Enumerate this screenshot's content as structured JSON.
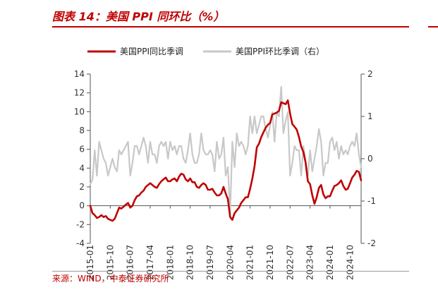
{
  "header": {
    "title": "图表 14：美国 PPI 同环比（%）"
  },
  "footer": {
    "source": "来源：WIND，中泰证券研究所"
  },
  "chart_data": {
    "type": "line",
    "title": "图表 14：美国 PPI 同环比（%）",
    "xlabel": "",
    "ylabel": "",
    "grid": false,
    "legend_position": "top",
    "x_tick_labels": [
      "2015-01",
      "2015-10",
      "2016-07",
      "2017-04",
      "2018-01",
      "2018-10",
      "2019-07",
      "2020-04",
      "2021-01",
      "2021-10",
      "2022-07",
      "2023-04",
      "2024-01",
      "2024-10"
    ],
    "y_left": {
      "range": [
        -4,
        14
      ],
      "ticks": [
        -4,
        -2,
        0,
        2,
        4,
        6,
        8,
        10,
        12,
        14
      ]
    },
    "y_right": {
      "range": [
        -2,
        2
      ],
      "ticks": [
        -2,
        -1,
        0,
        1,
        2
      ]
    },
    "x_range": [
      "2015-01",
      "2025-03"
    ],
    "series": [
      {
        "name": "美国PPI同比季调",
        "axis": "left",
        "color": "#c00000",
        "points": [
          [
            "2015-01",
            0.0
          ],
          [
            "2015-02",
            -0.8
          ],
          [
            "2015-03",
            -1.0
          ],
          [
            "2015-04",
            -1.3
          ],
          [
            "2015-05",
            -1.2
          ],
          [
            "2015-06",
            -1.0
          ],
          [
            "2015-07",
            -1.2
          ],
          [
            "2015-08",
            -1.1
          ],
          [
            "2015-09",
            -1.4
          ],
          [
            "2015-10",
            -1.5
          ],
          [
            "2015-11",
            -1.6
          ],
          [
            "2015-12",
            -1.4
          ],
          [
            "2016-01",
            -0.8
          ],
          [
            "2016-02",
            -0.2
          ],
          [
            "2016-03",
            -0.3
          ],
          [
            "2016-04",
            -0.1
          ],
          [
            "2016-05",
            0.1
          ],
          [
            "2016-06",
            0.3
          ],
          [
            "2016-07",
            -0.2
          ],
          [
            "2016-08",
            0.0
          ],
          [
            "2016-09",
            0.6
          ],
          [
            "2016-10",
            1.0
          ],
          [
            "2016-11",
            1.1
          ],
          [
            "2016-12",
            1.4
          ],
          [
            "2017-01",
            1.6
          ],
          [
            "2017-02",
            2.0
          ],
          [
            "2017-03",
            2.2
          ],
          [
            "2017-04",
            2.4
          ],
          [
            "2017-05",
            2.2
          ],
          [
            "2017-06",
            2.0
          ],
          [
            "2017-07",
            1.9
          ],
          [
            "2017-08",
            2.3
          ],
          [
            "2017-09",
            2.6
          ],
          [
            "2017-10",
            2.8
          ],
          [
            "2017-11",
            3.0
          ],
          [
            "2017-12",
            2.6
          ],
          [
            "2018-01",
            2.6
          ],
          [
            "2018-02",
            2.8
          ],
          [
            "2018-03",
            2.9
          ],
          [
            "2018-04",
            2.6
          ],
          [
            "2018-05",
            3.1
          ],
          [
            "2018-06",
            3.4
          ],
          [
            "2018-07",
            3.3
          ],
          [
            "2018-08",
            2.8
          ],
          [
            "2018-09",
            2.6
          ],
          [
            "2018-10",
            2.9
          ],
          [
            "2018-11",
            2.5
          ],
          [
            "2018-12",
            2.5
          ],
          [
            "2019-01",
            2.0
          ],
          [
            "2019-02",
            1.9
          ],
          [
            "2019-03",
            2.2
          ],
          [
            "2019-04",
            2.4
          ],
          [
            "2019-05",
            2.2
          ],
          [
            "2019-06",
            1.7
          ],
          [
            "2019-07",
            1.7
          ],
          [
            "2019-08",
            1.8
          ],
          [
            "2019-09",
            1.4
          ],
          [
            "2019-10",
            1.1
          ],
          [
            "2019-11",
            1.1
          ],
          [
            "2019-12",
            1.3
          ],
          [
            "2020-01",
            2.0
          ],
          [
            "2020-02",
            1.3
          ],
          [
            "2020-03",
            0.7
          ],
          [
            "2020-04",
            -1.2
          ],
          [
            "2020-05",
            -1.5
          ],
          [
            "2020-06",
            -0.8
          ],
          [
            "2020-07",
            -0.5
          ],
          [
            "2020-08",
            -0.2
          ],
          [
            "2020-09",
            0.3
          ],
          [
            "2020-10",
            0.6
          ],
          [
            "2020-11",
            0.9
          ],
          [
            "2020-12",
            0.9
          ],
          [
            "2021-01",
            1.8
          ],
          [
            "2021-02",
            2.9
          ],
          [
            "2021-03",
            4.2
          ],
          [
            "2021-04",
            6.2
          ],
          [
            "2021-05",
            6.6
          ],
          [
            "2021-06",
            7.3
          ],
          [
            "2021-07",
            7.8
          ],
          [
            "2021-08",
            8.3
          ],
          [
            "2021-09",
            8.6
          ],
          [
            "2021-10",
            8.8
          ],
          [
            "2021-11",
            9.7
          ],
          [
            "2021-12",
            9.8
          ],
          [
            "2022-01",
            9.9
          ],
          [
            "2022-02",
            10.1
          ],
          [
            "2022-03",
            11.0
          ],
          [
            "2022-04",
            10.9
          ],
          [
            "2022-05",
            10.8
          ],
          [
            "2022-06",
            11.2
          ],
          [
            "2022-07",
            9.8
          ],
          [
            "2022-08",
            8.7
          ],
          [
            "2022-09",
            8.4
          ],
          [
            "2022-10",
            8.1
          ],
          [
            "2022-11",
            7.3
          ],
          [
            "2022-12",
            6.3
          ],
          [
            "2023-01",
            5.7
          ],
          [
            "2023-02",
            4.6
          ],
          [
            "2023-03",
            2.6
          ],
          [
            "2023-04",
            2.3
          ],
          [
            "2023-05",
            1.1
          ],
          [
            "2023-06",
            0.2
          ],
          [
            "2023-07",
            0.9
          ],
          [
            "2023-08",
            1.9
          ],
          [
            "2023-09",
            2.2
          ],
          [
            "2023-10",
            1.2
          ],
          [
            "2023-11",
            0.8
          ],
          [
            "2023-12",
            1.0
          ],
          [
            "2024-01",
            1.0
          ],
          [
            "2024-02",
            1.6
          ],
          [
            "2024-03",
            2.1
          ],
          [
            "2024-04",
            2.2
          ],
          [
            "2024-05",
            2.4
          ],
          [
            "2024-06",
            2.7
          ],
          [
            "2024-07",
            2.1
          ],
          [
            "2024-08",
            1.7
          ],
          [
            "2024-09",
            1.8
          ],
          [
            "2024-10",
            2.4
          ],
          [
            "2024-11",
            3.0
          ],
          [
            "2024-12",
            3.3
          ],
          [
            "2025-01",
            3.7
          ],
          [
            "2025-02",
            3.6
          ],
          [
            "2025-03",
            2.7
          ]
        ]
      },
      {
        "name": "美国PPI环比季调（右）",
        "axis": "right",
        "color": "#c8c8c8",
        "points": [
          [
            "2015-01",
            -0.6
          ],
          [
            "2015-02",
            -0.5
          ],
          [
            "2015-03",
            0.2
          ],
          [
            "2015-04",
            -0.4
          ],
          [
            "2015-05",
            0.4
          ],
          [
            "2015-06",
            0.2
          ],
          [
            "2015-07",
            0.0
          ],
          [
            "2015-08",
            -0.1
          ],
          [
            "2015-09",
            -0.4
          ],
          [
            "2015-10",
            -0.2
          ],
          [
            "2015-11",
            0.0
          ],
          [
            "2015-12",
            -0.2
          ],
          [
            "2016-01",
            -0.3
          ],
          [
            "2016-02",
            0.2
          ],
          [
            "2016-03",
            0.1
          ],
          [
            "2016-04",
            0.2
          ],
          [
            "2016-05",
            0.3
          ],
          [
            "2016-06",
            0.4
          ],
          [
            "2016-07",
            -0.4
          ],
          [
            "2016-08",
            -0.1
          ],
          [
            "2016-09",
            0.3
          ],
          [
            "2016-10",
            0.3
          ],
          [
            "2016-11",
            0.1
          ],
          [
            "2016-12",
            0.3
          ],
          [
            "2017-01",
            0.5
          ],
          [
            "2017-02",
            0.3
          ],
          [
            "2017-03",
            -0.1
          ],
          [
            "2017-04",
            0.4
          ],
          [
            "2017-05",
            0.1
          ],
          [
            "2017-06",
            0.1
          ],
          [
            "2017-07",
            -0.1
          ],
          [
            "2017-08",
            0.3
          ],
          [
            "2017-09",
            0.4
          ],
          [
            "2017-10",
            0.3
          ],
          [
            "2017-11",
            0.4
          ],
          [
            "2017-12",
            0.0
          ],
          [
            "2018-01",
            0.4
          ],
          [
            "2018-02",
            0.2
          ],
          [
            "2018-03",
            0.3
          ],
          [
            "2018-04",
            0.1
          ],
          [
            "2018-05",
            0.3
          ],
          [
            "2018-06",
            0.3
          ],
          [
            "2018-07",
            0.0
          ],
          [
            "2018-08",
            -0.1
          ],
          [
            "2018-09",
            0.2
          ],
          [
            "2018-10",
            0.6
          ],
          [
            "2018-11",
            0.1
          ],
          [
            "2018-12",
            -0.1
          ],
          [
            "2019-01",
            -0.1
          ],
          [
            "2019-02",
            0.1
          ],
          [
            "2019-03",
            0.6
          ],
          [
            "2019-04",
            0.2
          ],
          [
            "2019-05",
            0.1
          ],
          [
            "2019-06",
            0.1
          ],
          [
            "2019-07",
            0.2
          ],
          [
            "2019-08",
            0.1
          ],
          [
            "2019-09",
            -0.3
          ],
          [
            "2019-10",
            0.4
          ],
          [
            "2019-11",
            0.0
          ],
          [
            "2019-12",
            0.1
          ],
          [
            "2020-01",
            0.5
          ],
          [
            "2020-02",
            -0.4
          ],
          [
            "2020-03",
            -0.2
          ],
          [
            "2020-04",
            -1.3
          ],
          [
            "2020-05",
            0.4
          ],
          [
            "2020-06",
            -0.2
          ],
          [
            "2020-07",
            0.6
          ],
          [
            "2020-08",
            0.3
          ],
          [
            "2020-09",
            0.4
          ],
          [
            "2020-10",
            0.3
          ],
          [
            "2020-11",
            0.1
          ],
          [
            "2020-12",
            0.3
          ],
          [
            "2021-01",
            1.0
          ],
          [
            "2021-02",
            0.6
          ],
          [
            "2021-03",
            1.0
          ],
          [
            "2021-04",
            0.6
          ],
          [
            "2021-05",
            0.8
          ],
          [
            "2021-06",
            1.0
          ],
          [
            "2021-07",
            1.0
          ],
          [
            "2021-08",
            0.7
          ],
          [
            "2021-09",
            0.5
          ],
          [
            "2021-10",
            0.8
          ],
          [
            "2021-11",
            1.1
          ],
          [
            "2021-12",
            0.4
          ],
          [
            "2022-01",
            1.1
          ],
          [
            "2022-02",
            1.0
          ],
          [
            "2022-03",
            1.7
          ],
          [
            "2022-04",
            0.6
          ],
          [
            "2022-05",
            0.9
          ],
          [
            "2022-06",
            1.1
          ],
          [
            "2022-07",
            -0.4
          ],
          [
            "2022-08",
            -0.1
          ],
          [
            "2022-09",
            0.3
          ],
          [
            "2022-10",
            0.2
          ],
          [
            "2022-11",
            0.2
          ],
          [
            "2022-12",
            -0.4
          ],
          [
            "2023-01",
            0.3
          ],
          [
            "2023-02",
            -0.1
          ],
          [
            "2023-03",
            -0.4
          ],
          [
            "2023-04",
            0.2
          ],
          [
            "2023-05",
            -0.3
          ],
          [
            "2023-06",
            0.0
          ],
          [
            "2023-07",
            0.3
          ],
          [
            "2023-08",
            0.7
          ],
          [
            "2023-09",
            0.4
          ],
          [
            "2023-10",
            -0.4
          ],
          [
            "2023-11",
            -0.1
          ],
          [
            "2023-12",
            -0.1
          ],
          [
            "2024-01",
            0.4
          ],
          [
            "2024-02",
            0.5
          ],
          [
            "2024-03",
            0.2
          ],
          [
            "2024-04",
            0.4
          ],
          [
            "2024-05",
            0.0
          ],
          [
            "2024-06",
            0.3
          ],
          [
            "2024-07",
            0.1
          ],
          [
            "2024-08",
            0.2
          ],
          [
            "2024-09",
            0.1
          ],
          [
            "2024-10",
            0.3
          ],
          [
            "2024-11",
            0.4
          ],
          [
            "2024-12",
            0.3
          ],
          [
            "2025-01",
            0.6
          ],
          [
            "2025-02",
            0.1
          ],
          [
            "2025-03",
            -0.2
          ]
        ]
      }
    ]
  }
}
